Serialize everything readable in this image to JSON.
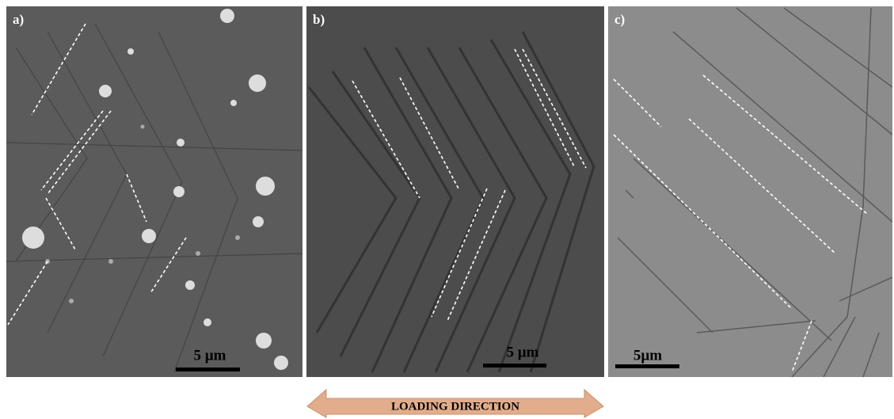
{
  "panels": [
    {
      "label": "a)",
      "scale_bar": "5 µm"
    },
    {
      "label": "b)",
      "scale_bar": "5 µm"
    },
    {
      "label": "c)",
      "scale_bar": "5µm"
    }
  ],
  "arrow": {
    "label": "LOADING DIRECTION"
  }
}
